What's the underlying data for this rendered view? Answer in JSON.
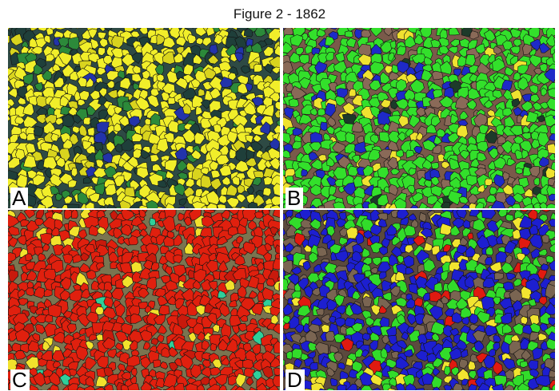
{
  "figure_title": "Figure 2 - 1862",
  "panels": [
    {
      "label": "A",
      "background": "#2e4a44",
      "palette": [
        {
          "color": "#f1ee2a",
          "weight": 70
        },
        {
          "color": "#d9d41e",
          "weight": 10
        },
        {
          "color": "#2c8a3a",
          "weight": 8
        },
        {
          "color": "#1f3f3a",
          "weight": 9
        },
        {
          "color": "#2233aa",
          "weight": 3
        }
      ]
    },
    {
      "label": "B",
      "background": "#7a5a4a",
      "palette": [
        {
          "color": "#33e02b",
          "weight": 70
        },
        {
          "color": "#1e2ac8",
          "weight": 10
        },
        {
          "color": "#f0e230",
          "weight": 8
        },
        {
          "color": "#8a6a58",
          "weight": 10
        },
        {
          "color": "#1d3a2a",
          "weight": 2
        }
      ]
    },
    {
      "label": "C",
      "background": "#7a7450",
      "palette": [
        {
          "color": "#e0200e",
          "weight": 85
        },
        {
          "color": "#c81a0c",
          "weight": 7
        },
        {
          "color": "#f2e22c",
          "weight": 6
        },
        {
          "color": "#2fcf9a",
          "weight": 2
        }
      ]
    },
    {
      "label": "D",
      "background": "#5b4a3e",
      "palette": [
        {
          "color": "#1d1fd0",
          "weight": 45
        },
        {
          "color": "#32dc2a",
          "weight": 28
        },
        {
          "color": "#7a6552",
          "weight": 14
        },
        {
          "color": "#f2e430",
          "weight": 8
        },
        {
          "color": "#e01a10",
          "weight": 5
        }
      ]
    }
  ]
}
